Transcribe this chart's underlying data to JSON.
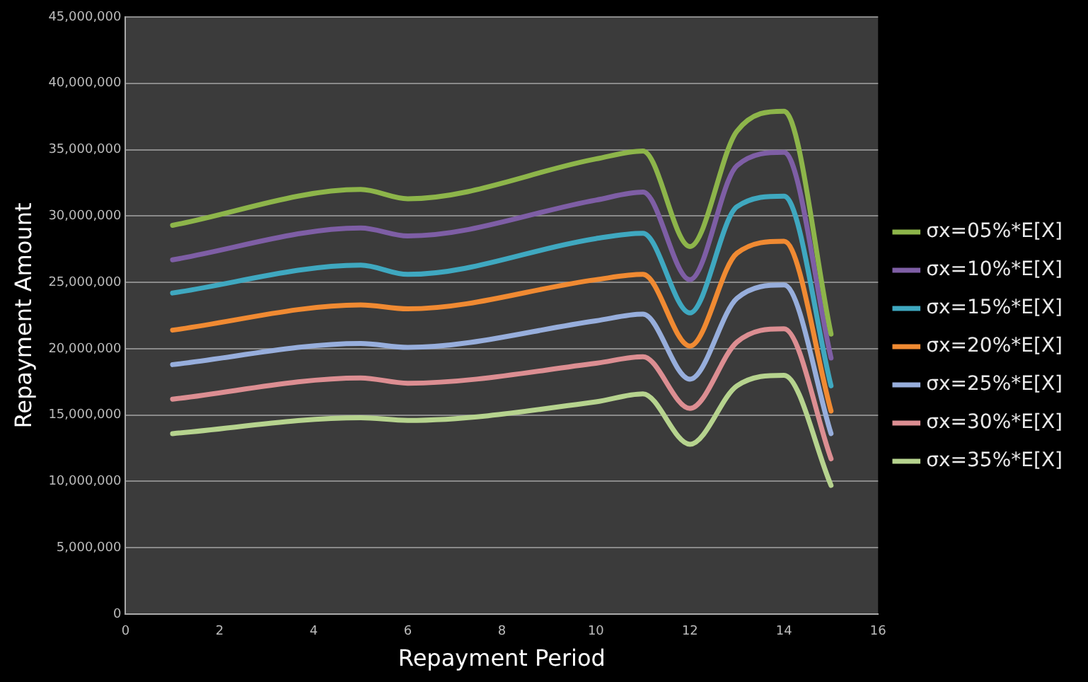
{
  "chart_data": {
    "type": "line",
    "xlabel": "Repayment Period",
    "ylabel": "Repayment Amount",
    "x": [
      1,
      5,
      6,
      10,
      11,
      12,
      13,
      14,
      15
    ],
    "series": [
      {
        "name": "σx=05%*E[X]",
        "color": "#8db54a",
        "values": [
          29300000,
          32000000,
          31300000,
          34300000,
          34900000,
          27700000,
          36400000,
          37900000,
          21100000
        ]
      },
      {
        "name": "σx=10%*E[X]",
        "color": "#7e5ea5",
        "values": [
          26700000,
          29100000,
          28500000,
          31200000,
          31800000,
          25200000,
          33800000,
          34800000,
          19300000
        ]
      },
      {
        "name": "σx=15%*E[X]",
        "color": "#3fa8c0",
        "values": [
          24200000,
          26300000,
          25600000,
          28300000,
          28700000,
          22700000,
          30700000,
          31500000,
          17200000
        ]
      },
      {
        "name": "σx=20%*E[X]",
        "color": "#f08a32",
        "values": [
          21400000,
          23300000,
          23000000,
          25200000,
          25600000,
          20200000,
          27200000,
          28100000,
          15300000
        ]
      },
      {
        "name": "σx=25%*E[X]",
        "color": "#97aedc",
        "values": [
          18800000,
          20400000,
          20100000,
          22100000,
          22600000,
          17700000,
          23800000,
          24800000,
          13600000
        ]
      },
      {
        "name": "σx=30%*E[X]",
        "color": "#dc8e92",
        "values": [
          16200000,
          17800000,
          17400000,
          18900000,
          19400000,
          15500000,
          20500000,
          21500000,
          11700000
        ]
      },
      {
        "name": "σx=35%*E[X]",
        "color": "#b6d38e",
        "values": [
          13600000,
          14800000,
          14600000,
          16000000,
          16600000,
          12800000,
          17200000,
          18000000,
          9700000
        ]
      }
    ],
    "xlim": [
      0,
      16
    ],
    "xticks": [
      0,
      2,
      4,
      6,
      8,
      10,
      12,
      14,
      16
    ],
    "ylim": [
      0,
      45000000
    ],
    "yticks": [
      {
        "value": 0,
        "label": "0"
      },
      {
        "value": 5000000,
        "label": "5,000,000"
      },
      {
        "value": 10000000,
        "label": "10,000,000"
      },
      {
        "value": 15000000,
        "label": "15,000,000"
      },
      {
        "value": 20000000,
        "label": "20,000,000"
      },
      {
        "value": 25000000,
        "label": "25,000,000"
      },
      {
        "value": 30000000,
        "label": "30,000,000"
      },
      {
        "value": 35000000,
        "label": "35,000,000"
      },
      {
        "value": 40000000,
        "label": "40,000,000"
      },
      {
        "value": 45000000,
        "label": "45,000,000"
      }
    ],
    "grid": "y",
    "legend": "right",
    "marker": "none",
    "line_style": "solid"
  }
}
